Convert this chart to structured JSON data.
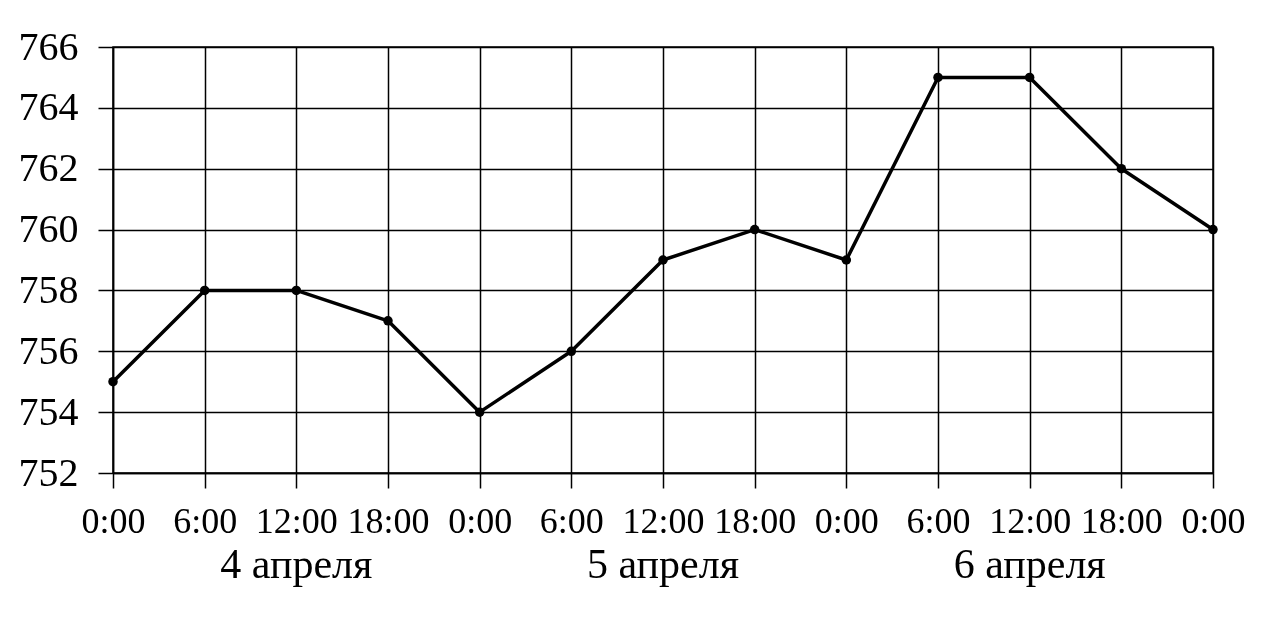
{
  "chart_data": {
    "type": "line",
    "categories": [
      "0:00",
      "6:00",
      "12:00",
      "18:00",
      "0:00",
      "6:00",
      "12:00",
      "18:00",
      "0:00",
      "6:00",
      "12:00",
      "18:00",
      "0:00"
    ],
    "series": [
      {
        "color": "#000000",
        "values": [
          755,
          758,
          758,
          757,
          754,
          756,
          759,
          760,
          759,
          765,
          765,
          762,
          760
        ]
      }
    ],
    "ylim": [
      752,
      766
    ],
    "yticks": [
      752,
      754,
      756,
      758,
      760,
      762,
      764,
      766
    ],
    "grid": true,
    "marker": "circle",
    "line_style": "solid",
    "annotations": [
      "4 апреля",
      "5 апреля",
      "6 апреля"
    ]
  }
}
